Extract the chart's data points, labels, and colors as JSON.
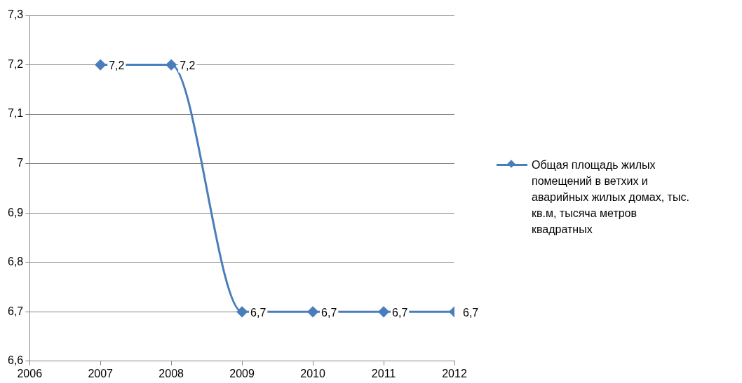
{
  "chart_data": {
    "type": "line",
    "x": [
      2007,
      2008,
      2009,
      2010,
      2011,
      2012
    ],
    "series": [
      {
        "name": "Общая площадь жилых помещений в ветхих и аварийных жилых домах, тыс. кв.м, тысяча метров квадратных",
        "color": "#4a7ebb",
        "values": [
          7.2,
          7.2,
          6.7,
          6.7,
          6.7,
          6.7
        ],
        "value_labels": [
          "7,2",
          "7,2",
          "6,7",
          "6,7",
          "6,7",
          "6,7"
        ]
      }
    ],
    "xlim": [
      2006,
      2012
    ],
    "xticks": [
      2006,
      2007,
      2008,
      2009,
      2010,
      2011,
      2012
    ],
    "ylim": [
      6.6,
      7.3
    ],
    "yticks": [
      {
        "value": 6.6,
        "label": "6,6"
      },
      {
        "value": 6.7,
        "label": "6,7"
      },
      {
        "value": 6.8,
        "label": "6,8"
      },
      {
        "value": 6.9,
        "label": "6,9"
      },
      7,
      {
        "value": 7.1,
        "label": "7,1"
      },
      {
        "value": 7.2,
        "label": "7,2"
      },
      {
        "value": 7.3,
        "label": "7,3"
      }
    ],
    "grid": "y",
    "legend": "right",
    "marker": "diamond",
    "line_style": "solid"
  }
}
